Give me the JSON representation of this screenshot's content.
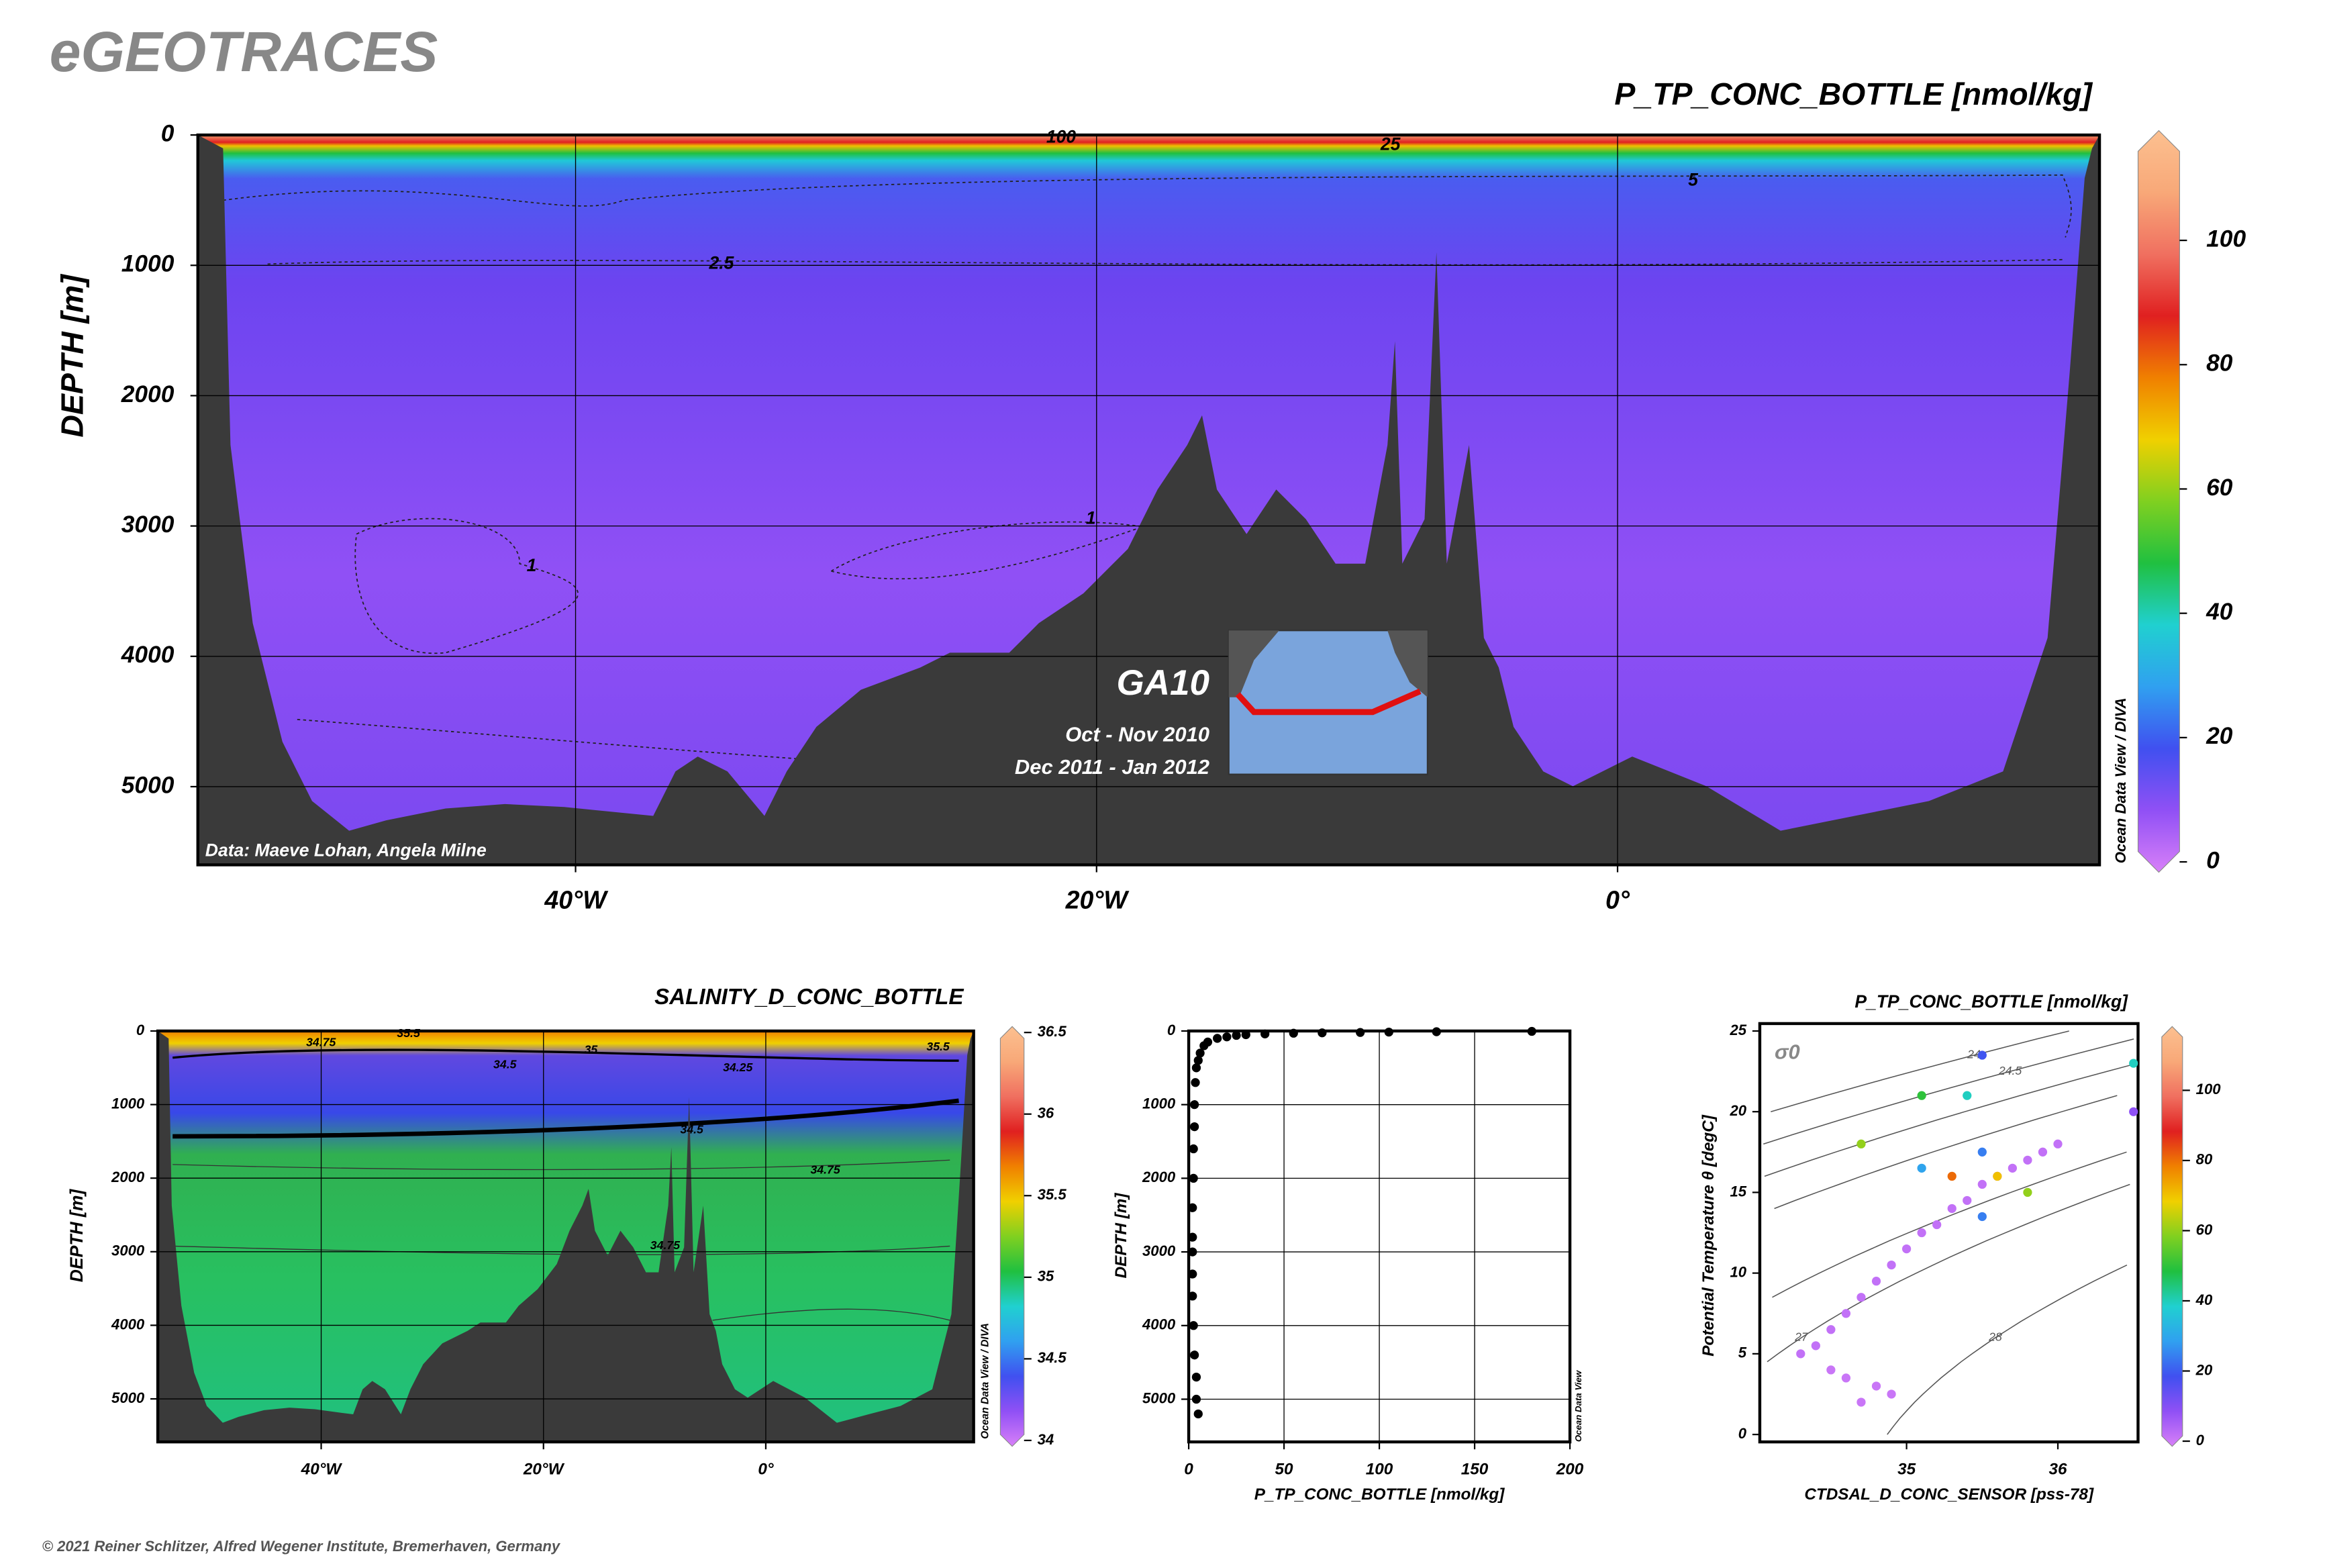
{
  "header": {
    "title": "eGEOTRACES",
    "footer": "© 2021 Reiner Schlitzer, Alfred Wegener Institute, Bremerhaven, Germany"
  },
  "chart_data": [
    {
      "type": "section",
      "title": "P_TP_CONC_BOTTLE [nmol/kg]",
      "ylabel": "DEPTH [m]",
      "y_inverted": true,
      "grid": true,
      "xlim": [
        -54.5,
        18.5
      ],
      "xticks": [
        {
          "value": -40,
          "label": "40°W"
        },
        {
          "value": -20,
          "label": "20°W"
        },
        {
          "value": 0,
          "label": "0°"
        }
      ],
      "ylim": [
        0,
        5600
      ],
      "yticks": [
        0,
        1000,
        2000,
        3000,
        4000,
        5000
      ],
      "clim": [
        0,
        116
      ],
      "cticks": [
        0,
        20,
        40,
        60,
        80,
        100
      ],
      "colormap": [
        "#d880f8",
        "#9050f5",
        "#4050f0",
        "#30a0f0",
        "#20d0d0",
        "#20c040",
        "#80d020",
        "#f0d000",
        "#f08000",
        "#e02020",
        "#f07060",
        "#f8a878",
        "#fcc090"
      ],
      "contour_labels": [
        100,
        25,
        5,
        2.5,
        1,
        1
      ],
      "annotations": [
        "GA10",
        "Oct - Nov 2010",
        "Dec 2011 - Jan 2012",
        "Data: Maeve Lohan, Angela Milne",
        "Ocean Data View / DIVA"
      ]
    },
    {
      "type": "section",
      "title": "SALINITY_D_CONC_BOTTLE",
      "ylabel": "DEPTH [m]",
      "y_inverted": true,
      "grid": true,
      "xlim": [
        -54.7,
        18.7
      ],
      "xticks": [
        {
          "value": -40,
          "label": "40°W"
        },
        {
          "value": -20,
          "label": "20°W"
        },
        {
          "value": 0,
          "label": "0°"
        }
      ],
      "ylim": [
        0,
        5585
      ],
      "yticks": [
        0,
        1000,
        2000,
        3000,
        4000,
        5000
      ],
      "clim": [
        34,
        36.5
      ],
      "cticks": [
        34,
        34.5,
        35,
        35.5,
        36,
        36.5
      ],
      "colormap": [
        "#d880f8",
        "#9050f5",
        "#4050f0",
        "#30a0f0",
        "#20d0d0",
        "#20c040",
        "#80d020",
        "#f0d000",
        "#f08000",
        "#e02020",
        "#f07060",
        "#f8a878",
        "#fcc090"
      ],
      "contour_labels": [
        34.75,
        35.5,
        35,
        34.5,
        34.25,
        34.5,
        34.75,
        34.75,
        35.5
      ],
      "annotations": [
        "Ocean Data View / DIVA"
      ]
    },
    {
      "type": "scatter",
      "xlabel": "P_TP_CONC_BOTTLE [nmol/kg]",
      "ylabel": "DEPTH [m]",
      "y_inverted": true,
      "grid": true,
      "color": "#000000",
      "xlim": [
        0,
        200
      ],
      "xticks": [
        0,
        50,
        100,
        150,
        200
      ],
      "ylim": [
        0,
        5580
      ],
      "yticks": [
        0,
        1000,
        2000,
        3000,
        4000,
        5000
      ],
      "x": [
        180,
        130,
        105,
        90,
        70,
        55,
        40,
        30,
        25,
        20,
        15,
        10,
        8,
        6,
        5,
        4,
        3.5,
        3,
        3,
        2.5,
        2.5,
        2,
        2,
        2,
        2,
        2,
        2.5,
        3,
        4,
        4,
        5
      ],
      "y": [
        5,
        10,
        15,
        20,
        25,
        30,
        40,
        50,
        60,
        80,
        100,
        150,
        200,
        300,
        400,
        500,
        700,
        1000,
        1300,
        1600,
        2000,
        2400,
        2800,
        3000,
        3300,
        3600,
        4000,
        4400,
        4700,
        5000,
        5200
      ],
      "annotations": [
        "Ocean Data View"
      ]
    },
    {
      "type": "ts",
      "title": "P_TP_CONC_BOTTLE [nmol/kg]",
      "xlabel": "CTDSAL_D_CONC_SENSOR [pss-78]",
      "ylabel": "Potential Temperature θ [degC]",
      "grid": false,
      "xlim": [
        34.03,
        36.53
      ],
      "xticks": [
        35,
        36
      ],
      "ylim": [
        -0.46,
        25.46
      ],
      "yticks": [
        0,
        5,
        10,
        15,
        20,
        25
      ],
      "clim": [
        0,
        116.7
      ],
      "cticks": [
        0,
        20,
        40,
        60,
        80,
        100
      ],
      "colormap": [
        "#d880f8",
        "#9050f5",
        "#4050f0",
        "#30a0f0",
        "#20d0d0",
        "#20c040",
        "#80d020",
        "#f0d000",
        "#f08000",
        "#e02020",
        "#f07060",
        "#f8a878",
        "#fcc090"
      ],
      "density_label": "σ0",
      "density_levels": [
        24,
        24.5,
        25,
        25.5,
        26.5,
        27,
        28
      ],
      "x": [
        34.3,
        34.4,
        34.5,
        34.6,
        34.7,
        34.8,
        34.9,
        35.0,
        35.1,
        35.2,
        35.3,
        35.4,
        35.5,
        35.6,
        35.7,
        35.8,
        35.9,
        36.0,
        34.7,
        34.8,
        34.9,
        34.6,
        34.5,
        35.1,
        35.4,
        35.5,
        35.1,
        35.6,
        35.5,
        35.8,
        34.7,
        35.5,
        35.3,
        36.5,
        36.5
      ],
      "y": [
        5,
        5.5,
        6.5,
        7.5,
        8.5,
        9.5,
        10.5,
        11.5,
        12.5,
        13,
        14,
        14.5,
        15.5,
        16,
        16.5,
        17,
        17.5,
        18,
        2,
        3,
        2.5,
        3.5,
        4,
        21,
        21,
        23.5,
        16.5,
        16,
        17.5,
        15,
        18,
        13.5,
        16,
        23,
        20
      ],
      "c": [
        3,
        3,
        3,
        3,
        3,
        3,
        3,
        3,
        3,
        3,
        3,
        3,
        3,
        3,
        3,
        3,
        3,
        3,
        2,
        2,
        2,
        2,
        2,
        50,
        40,
        20,
        30,
        70,
        25,
        60,
        60,
        25,
        80,
        40,
        10
      ]
    }
  ]
}
